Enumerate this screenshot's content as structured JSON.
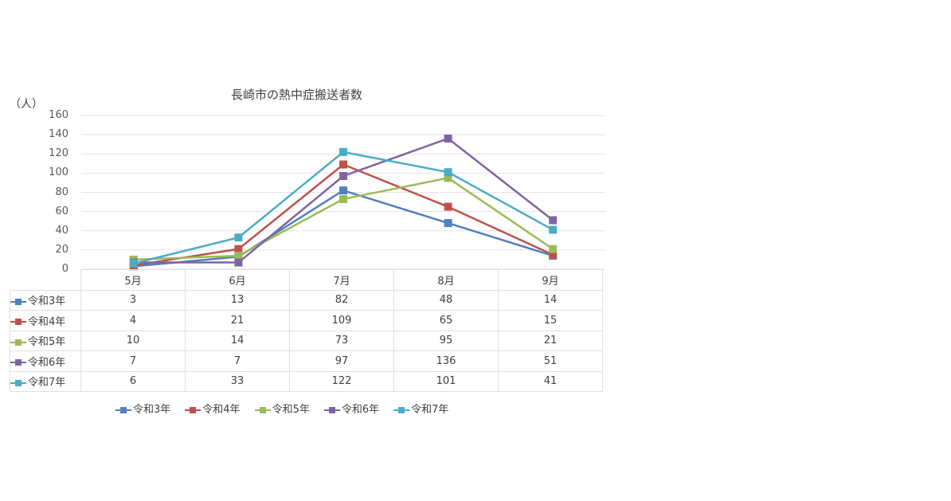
{
  "chart_data": {
    "type": "line",
    "title": "長崎市の熱中症搬送者数",
    "ylabel": "（人）",
    "xlabel": "",
    "ylim": [
      0,
      160
    ],
    "yticks": [
      0,
      20,
      40,
      60,
      80,
      100,
      120,
      140,
      160
    ],
    "grid": true,
    "legend_position": "bottom",
    "categories": [
      "5月",
      "6月",
      "7月",
      "8月",
      "9月"
    ],
    "series": [
      {
        "name": "令和3年",
        "color": "#4f81bd",
        "values": [
          3,
          13,
          82,
          48,
          14
        ]
      },
      {
        "name": "令和4年",
        "color": "#c0504d",
        "values": [
          4,
          21,
          109,
          65,
          15
        ]
      },
      {
        "name": "令和5年",
        "color": "#9bbb59",
        "values": [
          10,
          14,
          73,
          95,
          21
        ]
      },
      {
        "name": "令和6年",
        "color": "#8064a2",
        "values": [
          7,
          7,
          97,
          136,
          51
        ]
      },
      {
        "name": "令和7年",
        "color": "#4bacc6",
        "values": [
          6,
          33,
          122,
          101,
          41
        ]
      }
    ],
    "data_table": true
  },
  "labels": {
    "title": "長崎市の熱中症搬送者数",
    "unit": "（人）",
    "yticks": [
      "160",
      "140",
      "120",
      "100",
      "80",
      "60",
      "40",
      "20",
      "0"
    ],
    "months": [
      "5月",
      "6月",
      "7月",
      "8月",
      "9月"
    ],
    "series": [
      "令和3年",
      "令和4年",
      "令和5年",
      "令和6年",
      "令和7年"
    ],
    "rows": [
      [
        "3",
        "13",
        "82",
        "48",
        "14"
      ],
      [
        "4",
        "21",
        "109",
        "65",
        "15"
      ],
      [
        "10",
        "14",
        "73",
        "95",
        "21"
      ],
      [
        "7",
        "7",
        "97",
        "136",
        "51"
      ],
      [
        "6",
        "33",
        "122",
        "101",
        "41"
      ]
    ]
  }
}
